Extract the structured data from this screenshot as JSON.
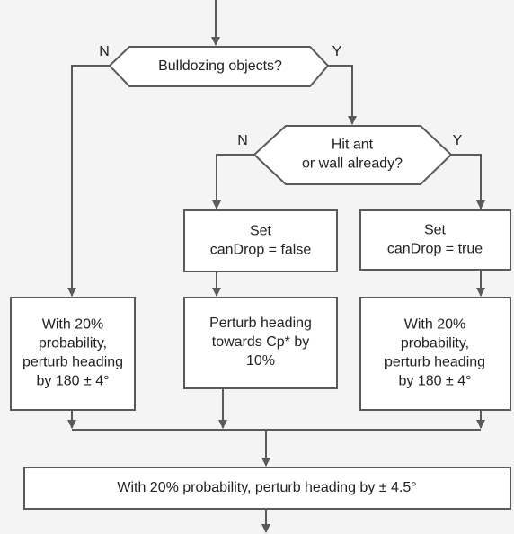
{
  "nodes": [
    {
      "lines": [
        "Bulldozing objects?"
      ]
    },
    {
      "lines": [
        "Hit ant",
        "or wall already?"
      ]
    },
    {
      "lines": [
        "Set",
        "canDrop = false"
      ]
    },
    {
      "lines": [
        "Set",
        "canDrop = true"
      ]
    },
    {
      "lines": [
        "With 20%",
        "probability,",
        "perturb heading",
        "by 180 ± 4°"
      ]
    },
    {
      "lines": [
        "Perturb heading",
        "towards Cp* by",
        "10%"
      ]
    },
    {
      "lines": [
        "With 20%",
        "probability,",
        "perturb heading",
        "by 180 ± 4°"
      ]
    },
    {
      "lines": [
        "With 20% probability, perturb heading by ± 4.5°"
      ]
    }
  ],
  "edge_labels": [
    "N",
    "Y",
    "N",
    "Y"
  ]
}
